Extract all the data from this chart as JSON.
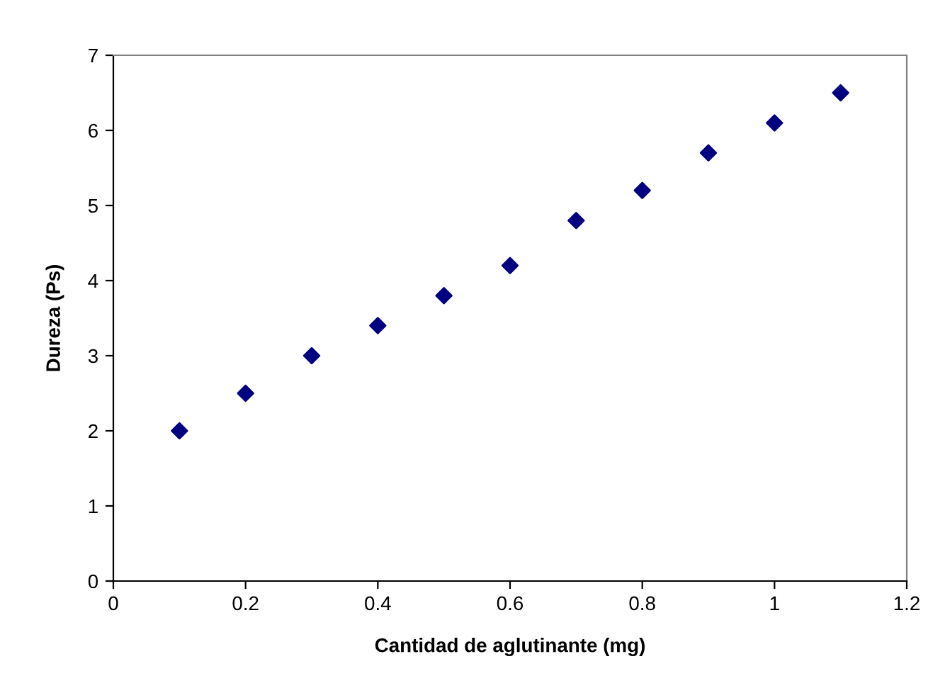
{
  "chart_data": {
    "type": "scatter",
    "xlabel": "Cantidad de aglutinante (mg)",
    "ylabel": "Dureza (Ps)",
    "x": [
      0.1,
      0.2,
      0.3,
      0.4,
      0.5,
      0.6,
      0.7,
      0.8,
      0.9,
      1.0,
      1.1
    ],
    "series": [
      {
        "color": "#000080",
        "values": [
          2.0,
          2.5,
          3.0,
          3.4,
          3.8,
          4.2,
          4.8,
          5.2,
          5.7,
          6.1,
          6.5
        ]
      }
    ],
    "xlim": [
      0,
      1.2
    ],
    "xticks": [
      0,
      0.2,
      0.4,
      0.6,
      0.8,
      1,
      1.2
    ],
    "ylim": [
      0,
      7
    ],
    "yticks": [
      0,
      1,
      2,
      3,
      4,
      5,
      6,
      7
    ],
    "marker": "diamond",
    "grid": false,
    "legend": false
  }
}
